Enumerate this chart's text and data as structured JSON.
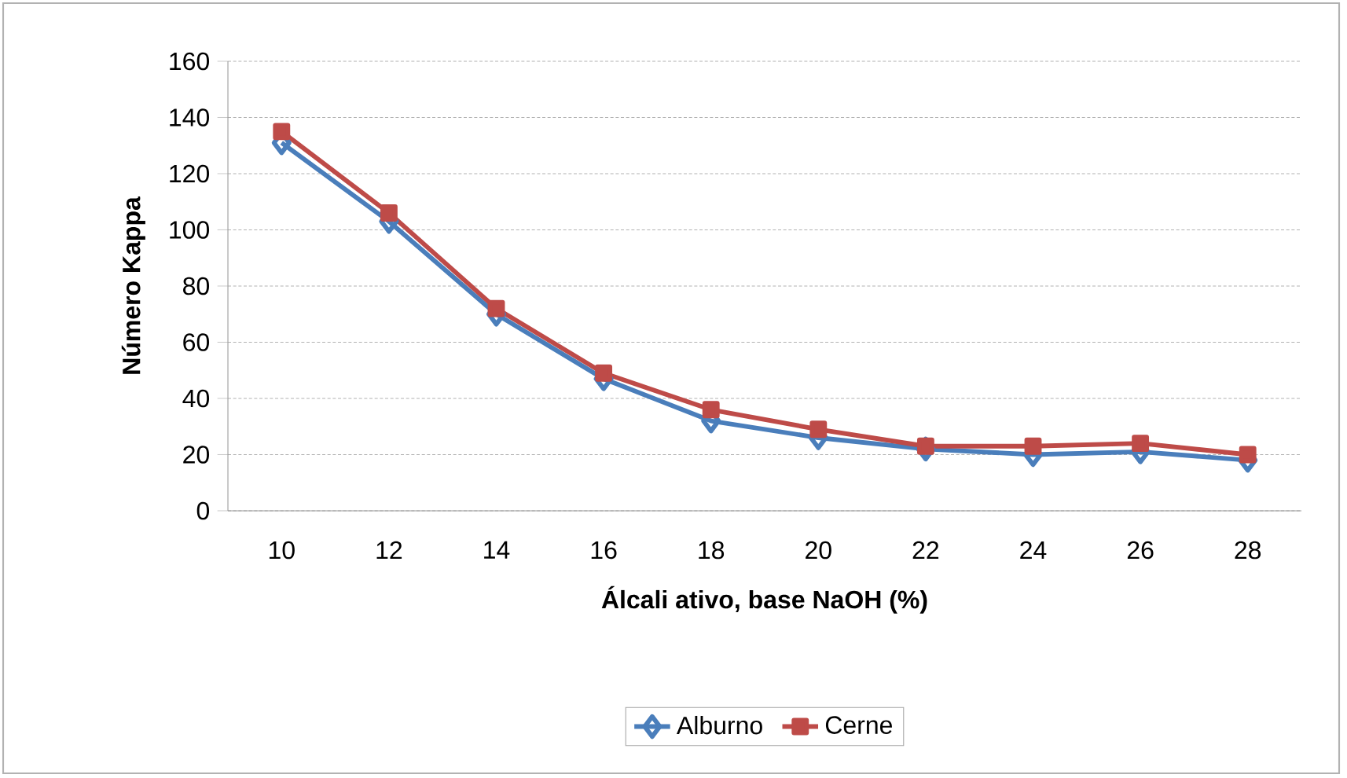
{
  "chart_data": {
    "type": "line",
    "xlabel": "Álcali ativo, base NaOH (%)",
    "ylabel": "Número Kappa",
    "categories": [
      "10",
      "12",
      "14",
      "16",
      "18",
      "20",
      "22",
      "24",
      "26",
      "28"
    ],
    "series": [
      {
        "name": "Alburno",
        "color": "#4a7ebb",
        "marker": "diamond",
        "values": [
          131,
          103,
          70,
          47,
          32,
          26,
          22,
          20,
          21,
          18
        ]
      },
      {
        "name": "Cerne",
        "color": "#be4b48",
        "marker": "square",
        "values": [
          135,
          106,
          72,
          49,
          36,
          29,
          23,
          23,
          24,
          20
        ]
      }
    ],
    "ylim": [
      0,
      160
    ],
    "yticks": [
      0,
      20,
      40,
      60,
      80,
      100,
      120,
      140,
      160
    ],
    "grid": "y",
    "legend": "bottom",
    "line_style": "solid"
  }
}
